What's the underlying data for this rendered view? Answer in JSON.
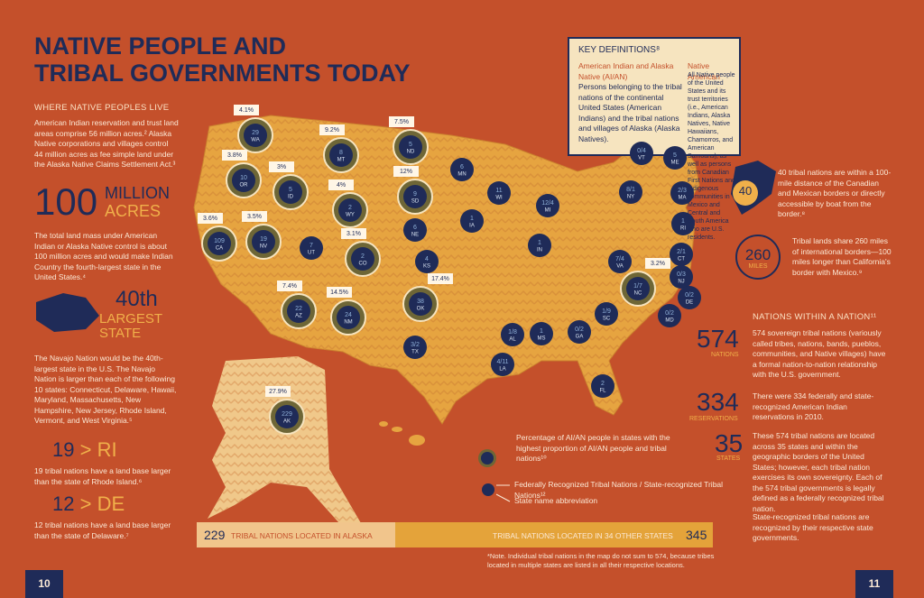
{
  "header": {
    "title_line1": "NATIVE PEOPLE AND",
    "title_line2": "TRIBAL GOVERNMENTS TODAY"
  },
  "left": {
    "section": "WHERE NATIVE PEOPLES LIVE",
    "para1": "American Indian reservation and trust land areas comprise 56 million acres.² Alaska Native corporations and villages control 44 million acres as fee simple land under the Alaska Native Claims Settlement Act.³",
    "stat1_number": "100",
    "stat1_unit1": "MILLION",
    "stat1_unit2": "ACRES",
    "para2": "The total land mass under American Indian or Alaska Native control is about 100 million acres and would make Indian Country the fourth-largest state in the United States.⁴",
    "stat2_number": "40th",
    "stat2_unit": "LARGEST STATE",
    "para3": "The Navajo Nation would be the 40th-largest state in the U.S. The Navajo Nation is larger than each of the following 10 states: Connecticut, Delaware, Hawaii, Maryland, Massachusetts, New Hampshire, New Jersey, Rhode Island, Vermont, and West Virginia.⁵",
    "cmp1_number": "19",
    "cmp1_sign": ">",
    "cmp1_state": "RI",
    "cmp1_text": "19 tribal nations have a land base larger than the state of Rhode Island.⁶",
    "cmp2_number": "12",
    "cmp2_sign": ">",
    "cmp2_state": "DE",
    "cmp2_text": "12 tribal nations have a land base larger than the state of Delaware.⁷",
    "page": "10"
  },
  "definitions": {
    "title": "KEY DEFINITIONS⁸",
    "term1": "American Indian and Alaska Native (AI/AN)",
    "def1": "Persons belonging to the tribal nations of the continental United States (American Indians) and the tribal nations and villages of Alaska (Alaska Natives).",
    "term2": "Native American",
    "def2": "All Native people of the United States and its trust territories (i.e., American Indians, Alaska Natives, Native Hawaiians, Chamorros, and American Samoans), as well as persons from Canadian First Nations and Indigenous communities in Mexico and Central and South America who are U.S. residents."
  },
  "right": {
    "border_number": "40",
    "border_text": "40 tribal nations are within a 100-mile distance of the Canadian and Mexican borders or directly accessible by boat from the border.⁸",
    "miles_number": "260",
    "miles_unit": "MILES",
    "miles_text": "Tribal lands share 260 miles of international borders—100 miles longer than California's border with Mexico.⁹",
    "section": "NATIONS WITHIN A NATION¹¹",
    "s1_number": "574",
    "s1_unit": "NATIONS",
    "s1_text": "574 sovereign tribal nations (variously called tribes, nations, bands, pueblos, communities, and Native villages) have a formal nation-to-nation relationship with the U.S. government.",
    "s2_number": "334",
    "s2_unit": "RESERVATIONS",
    "s2_text": "There were 334 federally and state-recognized American Indian reservations in 2010.",
    "s3_number": "35",
    "s3_unit": "STATES",
    "s3_text": "These 574 tribal nations are located across 35 states and within the geographic borders of the United States; however, each tribal nation exercises its own sovereignty. Each of the 574 tribal governments is legally defined as a federally recognized tribal nation.",
    "s3_text2": "State-recognized tribal nations are recognized by their respective state governments.",
    "page": "11"
  },
  "map": {
    "states": [
      {
        "abbr": "WA",
        "count": "29",
        "pct": "4.1%"
      },
      {
        "abbr": "OR",
        "count": "10",
        "pct": "3.8%"
      },
      {
        "abbr": "ID",
        "count": "5",
        "pct": "3%"
      },
      {
        "abbr": "MT",
        "count": "8",
        "pct": "9.2%"
      },
      {
        "abbr": "ND",
        "count": "5",
        "pct": "7.5%"
      },
      {
        "abbr": "WY",
        "count": "2",
        "pct": "4%"
      },
      {
        "abbr": "SD",
        "count": "9",
        "pct": "12%"
      },
      {
        "abbr": "MN",
        "count": "6"
      },
      {
        "abbr": "WI",
        "count": "11"
      },
      {
        "abbr": "MI",
        "count": "12/4"
      },
      {
        "abbr": "IA",
        "count": "1"
      },
      {
        "abbr": "NE",
        "count": "6"
      },
      {
        "abbr": "UT",
        "count": "7"
      },
      {
        "abbr": "NV",
        "count": "19",
        "pct": "3.5%"
      },
      {
        "abbr": "CA",
        "count": "109",
        "pct": "3.6%"
      },
      {
        "abbr": "CO",
        "count": "2",
        "pct": "3.1%"
      },
      {
        "abbr": "KS",
        "count": "4"
      },
      {
        "abbr": "OK",
        "count": "38",
        "pct": "17.4%"
      },
      {
        "abbr": "AZ",
        "count": "22",
        "pct": "7.4%"
      },
      {
        "abbr": "NM",
        "count": "24",
        "pct": "14.5%"
      },
      {
        "abbr": "TX",
        "count": "3/2"
      },
      {
        "abbr": "IN",
        "count": "1"
      },
      {
        "abbr": "AL",
        "count": "1/8"
      },
      {
        "abbr": "MS",
        "count": "1"
      },
      {
        "abbr": "LA",
        "count": "4/11"
      },
      {
        "abbr": "GA",
        "count": "0/2"
      },
      {
        "abbr": "SC",
        "count": "1/9"
      },
      {
        "abbr": "FL",
        "count": "2"
      },
      {
        "abbr": "VA",
        "count": "7/4"
      },
      {
        "abbr": "NC",
        "count": "1/7",
        "pct": "3.2%"
      },
      {
        "abbr": "NY",
        "count": "8/1"
      },
      {
        "abbr": "VT",
        "count": "0/4"
      },
      {
        "abbr": "ME",
        "count": "5"
      },
      {
        "abbr": "MA",
        "count": "2/3"
      },
      {
        "abbr": "RI",
        "count": "1"
      },
      {
        "abbr": "CT",
        "count": "2/1"
      },
      {
        "abbr": "NJ",
        "count": "0/3"
      },
      {
        "abbr": "DE",
        "count": "0/2"
      },
      {
        "abbr": "MD",
        "count": "0/2"
      },
      {
        "abbr": "AK",
        "count": "229",
        "pct": "27.9%"
      }
    ],
    "legend_pct": "Percentage of AI/AN people in states with the highest proportion of AI/AN people and tribal nations¹⁰",
    "legend_count": "Federally Recognized Tribal Nations / State-recognized Tribal Nations¹²",
    "legend_abbr": "State name abbreviation"
  },
  "bottom": {
    "left_number": "229",
    "left_text": "TRIBAL NATIONS LOCATED IN ALASKA",
    "right_text": "TRIBAL NATIONS LOCATED IN 34 OTHER STATES",
    "right_number": "345",
    "note": "*Note. Individual tribal nations in the map do not sum to 574, because tribes located in multiple states are listed in all their respective locations."
  }
}
